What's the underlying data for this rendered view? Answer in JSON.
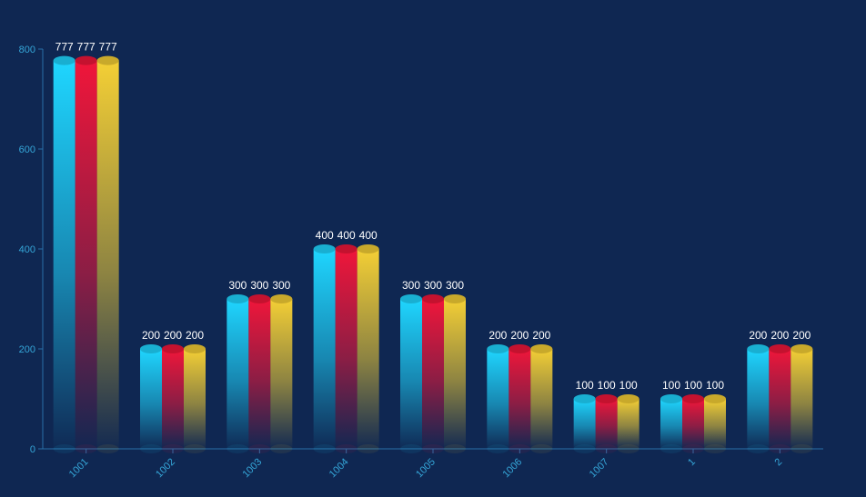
{
  "chart_data": {
    "type": "bar",
    "categories": [
      "1001",
      "1002",
      "1003",
      "1004",
      "1005",
      "1006",
      "1007",
      "1",
      "2"
    ],
    "series": [
      {
        "values": [
          777,
          200,
          300,
          400,
          300,
          200,
          100,
          100,
          200
        ],
        "color": "#1fd6ff"
      },
      {
        "values": [
          777,
          200,
          300,
          400,
          300,
          200,
          100,
          100,
          200
        ],
        "color": "#f0163a"
      },
      {
        "values": [
          777,
          200,
          300,
          400,
          300,
          200,
          100,
          100,
          200
        ],
        "color": "#f4cf35"
      }
    ],
    "ylim": [
      0,
      800
    ],
    "yticks": [
      0,
      200,
      400,
      600,
      800
    ],
    "grid": false,
    "colors": {
      "background": "#0f2752",
      "axis": "#2a6fa8",
      "tick_label": "#35a6d8",
      "value_label": "#ffffff"
    }
  }
}
